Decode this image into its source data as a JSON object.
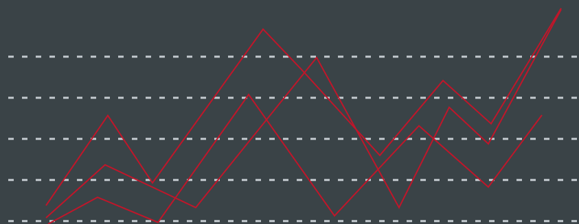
{
  "chart_data": {
    "type": "line",
    "xlim": [
      0,
      843
    ],
    "ylim": [
      -0.07,
      5.38
    ],
    "yticks": [
      0,
      1,
      2,
      3,
      4
    ],
    "grid": true,
    "grid_color": "#c3cacf",
    "background": "#3a4347",
    "series": [
      {
        "color": "#c0162a",
        "x": [
          67,
          157,
          222,
          383,
          440,
          553,
          645,
          715,
          817
        ],
        "values": [
          0.38,
          2.57,
          0.93,
          4.67,
          3.67,
          1.6,
          3.42,
          2.37,
          5.18
        ]
      },
      {
        "color": "#c0162a",
        "x": [
          67,
          153,
          285,
          461,
          581,
          654,
          711,
          817
        ],
        "values": [
          0.08,
          1.37,
          0.33,
          3.98,
          0.33,
          2.77,
          1.88,
          5.15
        ]
      },
      {
        "color": "#c0162a",
        "x": [
          70,
          142,
          230,
          362,
          487,
          610,
          711,
          789
        ],
        "values": [
          -0.07,
          0.58,
          -0.03,
          3.08,
          0.13,
          2.32,
          0.83,
          2.58
        ]
      }
    ]
  }
}
